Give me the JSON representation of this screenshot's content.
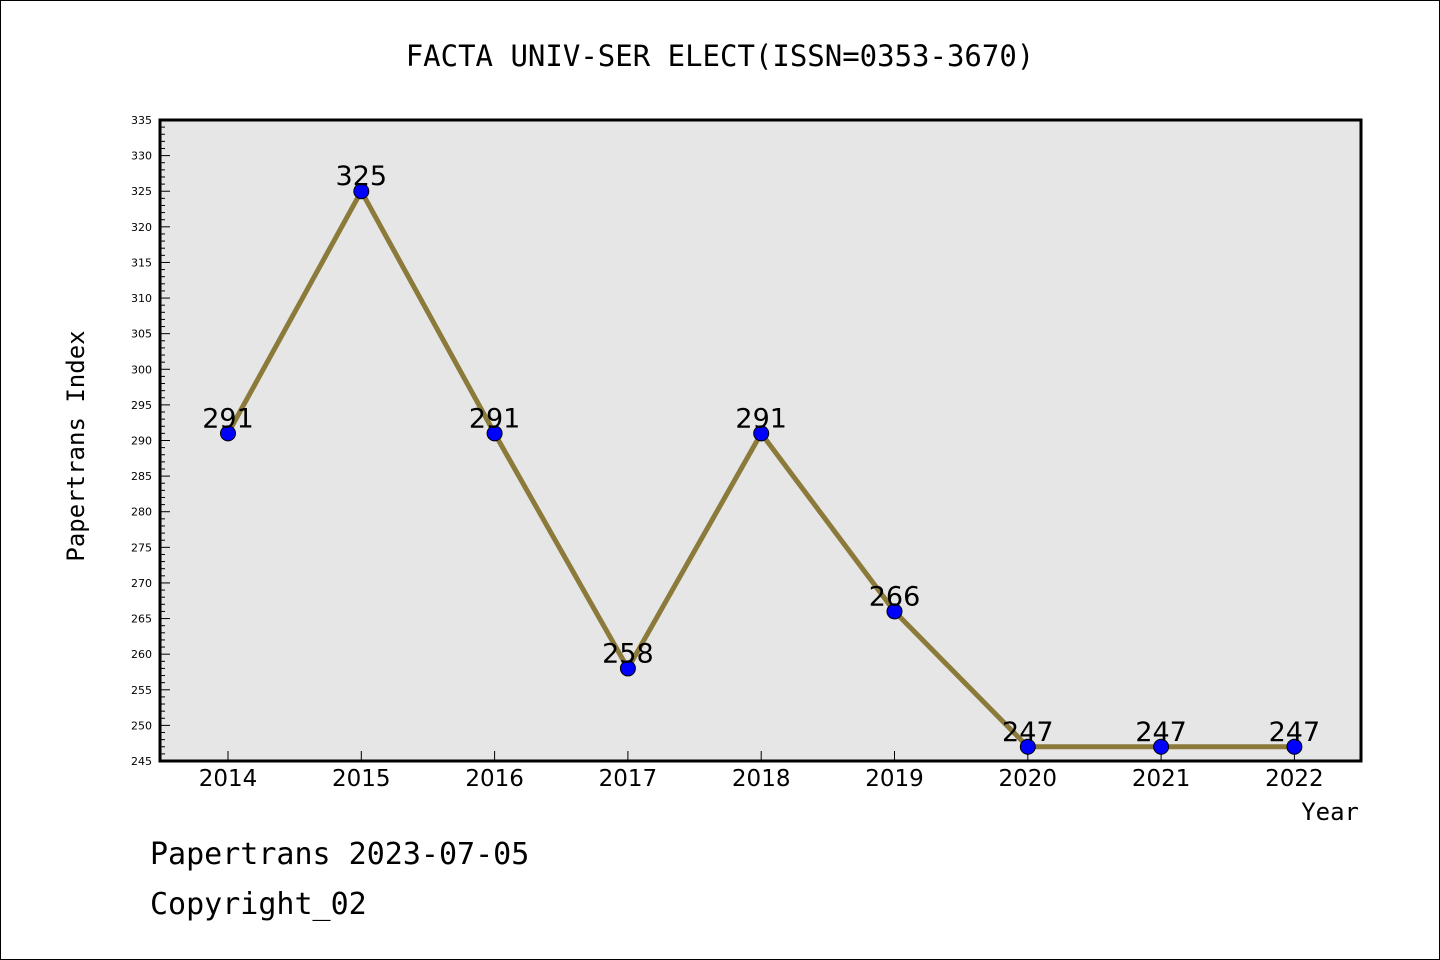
{
  "chart_data": {
    "type": "line",
    "title": "FACTA UNIV-SER ELECT(ISSN=0353-3670)",
    "xlabel": "Year",
    "ylabel": "Papertrans Index",
    "categories": [
      "2014",
      "2015",
      "2016",
      "2017",
      "2018",
      "2019",
      "2020",
      "2021",
      "2022"
    ],
    "series": [
      {
        "values": [
          291,
          325,
          291,
          258,
          291,
          266,
          247,
          247,
          247
        ]
      }
    ],
    "ylim": [
      245,
      335
    ],
    "ytick_step": 5,
    "ytick_labels": [
      "245",
      "250",
      "255",
      "260",
      "265",
      "270",
      "275",
      "280",
      "285",
      "290",
      "295",
      "300",
      "305",
      "310",
      "315",
      "320",
      "325",
      "330",
      "335"
    ],
    "grid": false,
    "data_labels": true,
    "colors": {
      "line": "#8b7a3a",
      "marker": "#0000ff",
      "plot_bg": "#e6e6e6"
    }
  },
  "footer": {
    "line1": "Papertrans 2023-07-05",
    "line2": "Copyright_02"
  }
}
